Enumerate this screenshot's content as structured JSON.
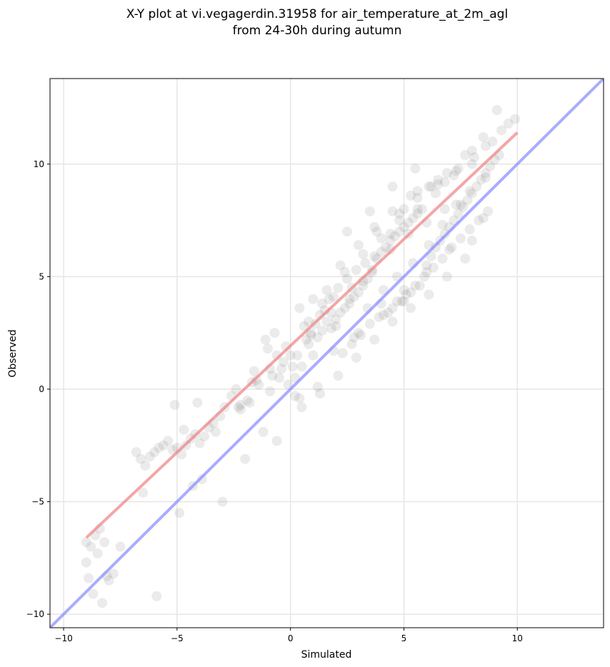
{
  "chart_data": {
    "type": "scatter",
    "title_lines": [
      "X-Y plot at vi.vegagerdin.31958 for air_temperature_at_2m_agl",
      "from 24-30h during autumn"
    ],
    "xlabel": "Simulated",
    "ylabel": "Observed",
    "xlim": [
      -10.6,
      13.8
    ],
    "ylim": [
      -10.6,
      13.8
    ],
    "xticks": [
      -10,
      -5,
      0,
      5,
      10
    ],
    "yticks": [
      -10,
      -5,
      0,
      5,
      10
    ],
    "grid": true,
    "reference_line": {
      "slope": 1,
      "intercept": 0,
      "color": "#8888ff"
    },
    "fit_line": {
      "x": [
        -9.0,
        10.0
      ],
      "y": [
        -6.6,
        11.4
      ],
      "color": "#f08080"
    },
    "point_color": "#808080",
    "points": {
      "x": [
        -9.0,
        -8.8,
        -8.6,
        -8.5,
        -8.4,
        -8.2,
        -8.0,
        -7.8,
        -7.5,
        -8.7,
        -8.3,
        -9.0,
        -8.1,
        -8.9,
        -6.6,
        -6.4,
        -6.2,
        -6.0,
        -5.8,
        -5.6,
        -5.4,
        -5.2,
        -5.0,
        -4.8,
        -4.6,
        -4.4,
        -4.2,
        -4.0,
        -3.8,
        -3.6,
        -3.4,
        -3.0,
        -6.8,
        -6.5,
        -4.3,
        -3.9,
        -2.0,
        -5.9,
        -4.9,
        -3.3,
        -4.1,
        -1.2,
        -0.6,
        -1.6,
        -2.4,
        -2.2,
        -1.8,
        -1.5,
        -2.6,
        -3.1,
        -2.9,
        -5.1,
        -4.7,
        -0.5,
        -0.3,
        -0.8,
        -1.0,
        -0.1,
        0.2,
        0.4,
        0.5,
        0.6,
        0.8,
        1.0,
        1.2,
        1.4,
        1.6,
        0.3,
        -0.2,
        0.9,
        1.1,
        1.3,
        1.5,
        1.8,
        2.0,
        2.2,
        2.4,
        2.6,
        2.8,
        3.0,
        3.2,
        3.4,
        3.6,
        1.7,
        2.1,
        2.5,
        2.9,
        3.3,
        3.7,
        4.0,
        4.2,
        4.4,
        4.6,
        4.8,
        5.0,
        5.2,
        5.4,
        5.6,
        5.8,
        4.1,
        4.5,
        4.9,
        5.3,
        5.7,
        6.0,
        6.2,
        6.4,
        6.6,
        6.8,
        7.0,
        7.2,
        7.4,
        7.6,
        7.8,
        8.0,
        8.2,
        8.4,
        8.6,
        8.8,
        9.0,
        9.3,
        9.6,
        9.9,
        2.3,
        2.7,
        3.1,
        3.5,
        3.9,
        4.3,
        4.7,
        5.1,
        5.5,
        5.9,
        6.3,
        6.7,
        7.1,
        7.5,
        7.9,
        8.3,
        8.7,
        1.9,
        0.7,
        0.1,
        -0.4,
        -0.7,
        3.8,
        4.8,
        5.6,
        6.5,
        7.3,
        8.1,
        8.9,
        2.2,
        3.0,
        3.7,
        4.5,
        5.3,
        6.1,
        6.9,
        7.7,
        8.5,
        9.1,
        0.4,
        1.0,
        1.6,
        2.4,
        3.2,
        4.0,
        4.8,
        5.6,
        6.4,
        7.2,
        8.0,
        1.3,
        2.1,
        2.9,
        3.7,
        4.5,
        5.3,
        6.1,
        6.9,
        7.7,
        0.0,
        0.9,
        1.8,
        2.7,
        3.6,
        4.4,
        5.2,
        6.0,
        6.8,
        -0.9,
        -1.4,
        -1.9,
        -0.6,
        -1.1,
        0.2,
        0.8,
        1.4,
        2.0,
        2.6,
        3.2,
        3.8,
        4.4,
        5.0,
        5.6,
        6.2,
        6.8,
        7.4,
        8.0,
        8.6,
        3.0,
        4.0,
        5.0,
        6.0,
        7.0,
        8.0,
        5.0,
        2.5,
        3.5,
        4.5,
        5.5,
        6.5,
        7.5,
        8.5,
        -2.2,
        -2.3,
        -1.7,
        -0.9,
        0.5,
        1.2,
        1.9,
        2.8,
        3.4,
        4.1,
        4.7,
        5.4,
        6.1,
        6.7,
        7.3,
        7.9,
        8.6,
        9.2
      ],
      "y": [
        -6.8,
        -7.0,
        -6.5,
        -7.3,
        -6.2,
        -6.8,
        -8.5,
        -8.2,
        -7.0,
        -9.1,
        -9.5,
        -7.7,
        -8.3,
        -8.4,
        -3.1,
        -3.4,
        -3.0,
        -2.8,
        -2.6,
        -2.5,
        -2.3,
        -2.7,
        -2.6,
        -2.9,
        -2.5,
        -2.2,
        -2.0,
        -2.4,
        -2.1,
        -1.7,
        -1.5,
        -5.0,
        -2.8,
        -4.6,
        -4.3,
        -4.0,
        -3.1,
        -9.2,
        -5.5,
        -1.9,
        -0.6,
        -1.9,
        -2.3,
        0.8,
        0.0,
        -0.9,
        -0.6,
        0.4,
        -0.3,
        -1.2,
        -0.8,
        -0.7,
        -1.8,
        0.5,
        1.2,
        0.6,
        1.8,
        0.2,
        -0.3,
        -0.4,
        1.0,
        2.8,
        2.0,
        1.5,
        2.3,
        2.6,
        3.0,
        1.5,
        1.9,
        2.4,
        2.9,
        3.3,
        3.5,
        2.7,
        3.1,
        3.4,
        3.6,
        3.8,
        4.1,
        4.3,
        4.6,
        4.9,
        5.2,
        4.0,
        4.5,
        4.9,
        5.3,
        5.6,
        5.9,
        6.1,
        6.3,
        6.6,
        6.8,
        7.0,
        7.2,
        7.4,
        7.6,
        7.8,
        8.0,
        3.3,
        3.6,
        3.9,
        4.3,
        4.6,
        5.5,
        5.9,
        6.3,
        6.6,
        6.9,
        7.2,
        7.5,
        7.8,
        8.1,
        8.4,
        8.7,
        9.0,
        9.3,
        9.6,
        9.9,
        10.2,
        11.5,
        11.8,
        12.0,
        1.6,
        2.0,
        2.4,
        2.9,
        3.2,
        3.4,
        3.9,
        4.2,
        4.6,
        5.0,
        5.4,
        5.8,
        6.3,
        6.7,
        7.1,
        7.5,
        7.9,
        4.1,
        2.2,
        1.0,
        0.9,
        2.5,
        7.0,
        7.8,
        8.5,
        9.1,
        9.7,
        10.3,
        11.0,
        5.5,
        6.4,
        7.2,
        7.9,
        8.6,
        9.0,
        9.6,
        10.4,
        11.2,
        12.4,
        3.6,
        4.0,
        4.4,
        5.2,
        6.0,
        6.7,
        7.5,
        8.0,
        8.7,
        9.5,
        10.0,
        -0.2,
        0.6,
        1.4,
        2.2,
        3.0,
        3.6,
        4.2,
        5.0,
        5.8,
        1.5,
        2.5,
        3.4,
        4.5,
        5.3,
        6.2,
        6.9,
        7.4,
        8.0,
        -0.1,
        0.2,
        -0.5,
        1.5,
        2.2,
        0.5,
        3.0,
        3.8,
        2.8,
        4.0,
        4.8,
        5.8,
        6.9,
        8.0,
        8.8,
        9.0,
        9.2,
        9.8,
        10.6,
        10.8,
        2.5,
        3.8,
        4.4,
        5.2,
        6.2,
        6.6,
        3.9,
        7.0,
        7.9,
        9.0,
        9.8,
        9.3,
        8.2,
        7.6,
        -0.7,
        -0.8,
        0.3,
        0.9,
        -0.8,
        0.1,
        1.7,
        2.3,
        3.6,
        4.4,
        5.0,
        5.6,
        6.4,
        7.3,
        8.2,
        8.8,
        9.4,
        10.4
      ]
    }
  }
}
